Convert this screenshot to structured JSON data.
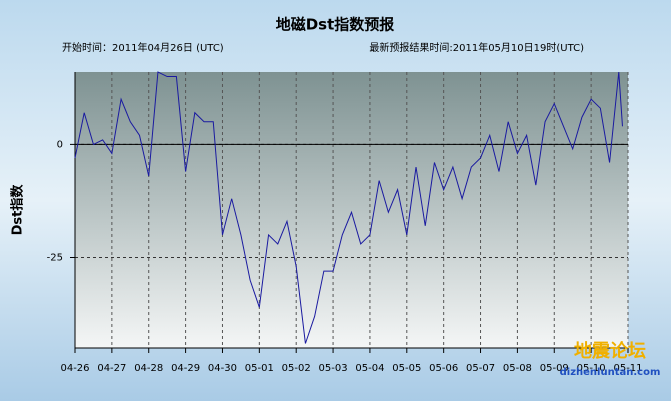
{
  "chart_data": {
    "type": "line",
    "title": "地磁Dst指数预报",
    "subtitle_left": "开始时间：2011年04月26日 (UTC)",
    "subtitle_right": "最新预报结果时间:2011年05月10日19时(UTC)",
    "y_label": "Dst指数",
    "watermark": "地震论坛",
    "watermark_url": "dizhenluntan.com",
    "color": "#1a1aa0",
    "grid": true,
    "x": [
      0,
      0.25,
      0.5,
      0.75,
      1,
      1.25,
      1.5,
      1.75,
      2,
      2.25,
      2.5,
      2.75,
      3,
      3.25,
      3.5,
      3.75,
      4,
      4.25,
      4.5,
      4.75,
      5,
      5.25,
      5.5,
      5.75,
      6,
      6.25,
      6.5,
      6.75,
      7,
      7.25,
      7.5,
      7.75,
      8,
      8.25,
      8.5,
      8.75,
      9,
      9.25,
      9.5,
      9.75,
      10,
      10.25,
      10.5,
      10.75,
      11,
      11.25,
      11.5,
      11.75,
      12,
      12.25,
      12.5,
      12.75,
      13,
      13.25,
      13.5,
      13.75,
      14,
      14.25,
      14.5,
      14.75,
      14.85
    ],
    "values": [
      -3,
      7,
      0,
      1,
      -2,
      10,
      5,
      2,
      -7,
      16,
      15,
      15,
      -6,
      7,
      5,
      5,
      -20,
      -12,
      -20,
      -30,
      -36,
      -20,
      -22,
      -17,
      -27,
      -44,
      -38,
      -28,
      -28,
      -20,
      -15,
      -22,
      -20,
      -8,
      -15,
      -10,
      -20,
      -5,
      -18,
      -4,
      -10,
      -5,
      -12,
      -5,
      -3,
      2,
      -6,
      5,
      -2,
      2,
      -9,
      5,
      9,
      4,
      -1,
      6,
      10,
      8,
      -4,
      16,
      4
    ],
    "xlim": [
      0,
      15
    ],
    "xticks": [
      {
        "value": 0,
        "label": "04-26"
      },
      {
        "value": 1,
        "label": "04-27"
      },
      {
        "value": 2,
        "label": "04-28"
      },
      {
        "value": 3,
        "label": "04-29"
      },
      {
        "value": 4,
        "label": "04-30"
      },
      {
        "value": 5,
        "label": "05-01"
      },
      {
        "value": 6,
        "label": "05-02"
      },
      {
        "value": 7,
        "label": "05-03"
      },
      {
        "value": 8,
        "label": "05-04"
      },
      {
        "value": 9,
        "label": "05-05"
      },
      {
        "value": 10,
        "label": "05-06"
      },
      {
        "value": 11,
        "label": "05-07"
      },
      {
        "value": 12,
        "label": "05-08"
      },
      {
        "value": 13,
        "label": "05-09"
      },
      {
        "value": 14,
        "label": "05-10"
      },
      {
        "value": 15,
        "label": "05-11"
      }
    ],
    "ylim": [
      -45,
      16
    ],
    "yticks": [
      -25,
      0
    ]
  }
}
